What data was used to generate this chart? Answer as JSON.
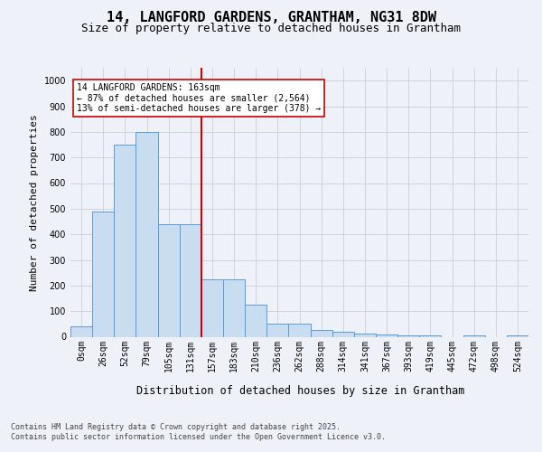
{
  "title_line1": "14, LANGFORD GARDENS, GRANTHAM, NG31 8DW",
  "title_line2": "Size of property relative to detached houses in Grantham",
  "xlabel": "Distribution of detached houses by size in Grantham",
  "ylabel": "Number of detached properties",
  "footer_line1": "Contains HM Land Registry data © Crown copyright and database right 2025.",
  "footer_line2": "Contains public sector information licensed under the Open Government Licence v3.0.",
  "bins": [
    "0sqm",
    "26sqm",
    "52sqm",
    "79sqm",
    "105sqm",
    "131sqm",
    "157sqm",
    "183sqm",
    "210sqm",
    "236sqm",
    "262sqm",
    "288sqm",
    "314sqm",
    "341sqm",
    "367sqm",
    "393sqm",
    "419sqm",
    "445sqm",
    "472sqm",
    "498sqm",
    "524sqm"
  ],
  "bar_values": [
    40,
    490,
    750,
    800,
    440,
    440,
    225,
    225,
    125,
    50,
    50,
    25,
    20,
    13,
    8,
    5,
    5,
    0,
    5,
    0,
    5
  ],
  "bar_color": "#c9ddf0",
  "bar_edge_color": "#5b9bd5",
  "vertical_line_x": 6,
  "vertical_line_color": "#cc0000",
  "annotation_text": "14 LANGFORD GARDENS: 163sqm\n← 87% of detached houses are smaller (2,564)\n13% of semi-detached houses are larger (378) →",
  "annotation_box_color": "#ffffff",
  "annotation_box_edge_color": "#cc0000",
  "ylim": [
    0,
    1050
  ],
  "yticks": [
    0,
    100,
    200,
    300,
    400,
    500,
    600,
    700,
    800,
    900,
    1000
  ],
  "background_color": "#eef2f8",
  "plot_background": "#eef2f8",
  "grid_color": "#c8d0de",
  "title_fontsize": 11,
  "subtitle_fontsize": 9,
  "axis_label_fontsize": 8.5,
  "tick_fontsize": 7,
  "annotation_fontsize": 7,
  "footer_fontsize": 6,
  "ylabel_fontsize": 8
}
